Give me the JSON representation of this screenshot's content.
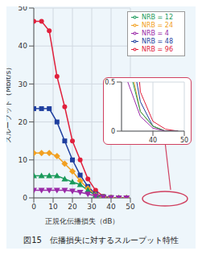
{
  "chart_data": [
    {
      "type": "line",
      "title": "図15　伝播損失に対するスループット特性",
      "x_label": "正規化伝播損失（dB）",
      "y_label": "スループット（Mbit/s）",
      "x": [
        0,
        4,
        8,
        12,
        16,
        20,
        24,
        28,
        32,
        36,
        40,
        44,
        48
      ],
      "xlim": [
        0,
        50
      ],
      "xticks": [
        0,
        10,
        20,
        30,
        40,
        50
      ],
      "ylim": [
        0,
        50
      ],
      "yticks": [
        0,
        10,
        20,
        30,
        40,
        50
      ],
      "grid": true,
      "legend": "upper right",
      "series": [
        {
          "name": "NRB = 96",
          "color": "#e0203c",
          "marker": "circle",
          "values": [
            46.5,
            46.5,
            44,
            32,
            24,
            15,
            10,
            5,
            2,
            0.4,
            0.1,
            0.02,
            0
          ]
        },
        {
          "name": "NRB = 48",
          "color": "#1f3f9f",
          "marker": "square",
          "values": [
            23.5,
            23.5,
            23.5,
            20,
            15,
            10,
            6,
            3,
            1,
            0.3,
            0.05,
            0,
            0
          ]
        },
        {
          "name": "NRB = 24",
          "color": "#f2a020",
          "marker": "diamond",
          "values": [
            11.8,
            11.8,
            11.8,
            11,
            9,
            7,
            4.5,
            2.5,
            0.8,
            0.2,
            0.05,
            0,
            0
          ]
        },
        {
          "name": "NRB = 12",
          "color": "#1a9a5a",
          "marker": "triangle",
          "values": [
            5.8,
            5.8,
            5.8,
            5.8,
            5,
            4.2,
            3.5,
            2,
            0.7,
            0.2,
            0.05,
            0,
            0
          ]
        },
        {
          "name": "NRB = 4",
          "color": "#9a2aa8",
          "marker": "triangle-down",
          "values": [
            2,
            2,
            2,
            2,
            2,
            1.8,
            1.5,
            1,
            0.5,
            0.15,
            0.03,
            0,
            0
          ]
        }
      ]
    },
    {
      "type": "line",
      "xlim": [
        30,
        50
      ],
      "xticks": [
        40,
        50
      ],
      "ylim": [
        0,
        0.5
      ],
      "yticks": [
        0,
        0.5
      ],
      "grid": true
    }
  ]
}
